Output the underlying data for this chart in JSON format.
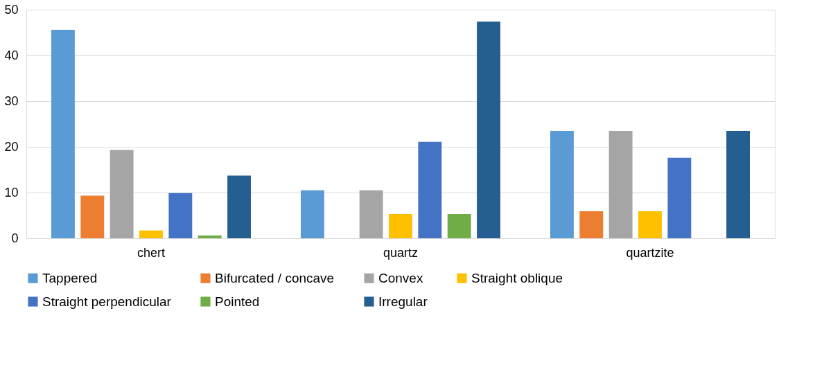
{
  "chart_data": {
    "type": "bar",
    "categories": [
      "chert",
      "quartz",
      "quartzite"
    ],
    "series": [
      {
        "name": "Tappered",
        "color": "#5b9bd5",
        "values": [
          45.6,
          10.5,
          23.5
        ]
      },
      {
        "name": "Bifurcated / concave",
        "color": "#ed7d31",
        "values": [
          9.3,
          0,
          5.9
        ]
      },
      {
        "name": "Convex",
        "color": "#a5a5a5",
        "values": [
          19.3,
          10.5,
          23.5
        ]
      },
      {
        "name": "Straight oblique",
        "color": "#ffc000",
        "values": [
          1.7,
          5.3,
          5.9
        ]
      },
      {
        "name": "Straight perpendicular",
        "color": "#4472c4",
        "values": [
          9.9,
          21.1,
          17.6
        ]
      },
      {
        "name": "Pointed",
        "color": "#70ad47",
        "values": [
          0.6,
          5.3,
          0
        ]
      },
      {
        "name": "Irregular",
        "color": "#255e91",
        "values": [
          13.7,
          47.4,
          23.5
        ]
      }
    ],
    "ylim": [
      0,
      50
    ],
    "yticks": [
      0,
      10,
      20,
      30,
      40,
      50
    ],
    "grid": "y",
    "legend": "bottom"
  }
}
